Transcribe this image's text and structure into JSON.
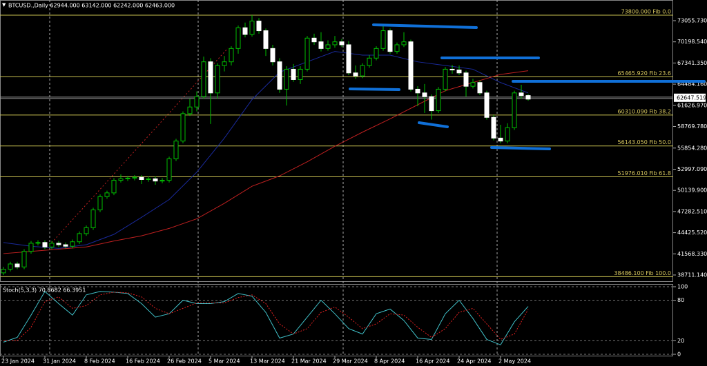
{
  "chart_data": [
    {
      "type": "candlestick",
      "title": "BTCUSD.,Daily  62944.000 63142.000 62242.000 62463.000",
      "categories": [
        "23 Jan 2024",
        null,
        null,
        null,
        null,
        null,
        "31 Jan 2024",
        null,
        null,
        null,
        null,
        null,
        "8 Feb 2024",
        null,
        null,
        null,
        null,
        null,
        "16 Feb 2024",
        null,
        null,
        null,
        null,
        null,
        "26 Feb 2024",
        null,
        null,
        null,
        null,
        null,
        "5 Mar 2024",
        null,
        null,
        null,
        null,
        null,
        "13 Mar 2024",
        null,
        null,
        null,
        null,
        null,
        "21 Mar 2024",
        null,
        null,
        null,
        null,
        null,
        "29 Mar 2024",
        null,
        null,
        null,
        null,
        null,
        "8 Apr 2024",
        null,
        null,
        null,
        null,
        null,
        "16 Apr 2024",
        null,
        null,
        null,
        null,
        null,
        "24 Apr 2024",
        null,
        null,
        null,
        null,
        null,
        "2 May 2024",
        null,
        null,
        null,
        null
      ],
      "candles": [
        [
          39000,
          39800,
          38700,
          39500
        ],
        [
          39500,
          40500,
          39200,
          40200
        ],
        [
          40200,
          40500,
          39500,
          39800
        ],
        [
          39800,
          42200,
          39500,
          41900
        ],
        [
          41900,
          43300,
          41600,
          43000
        ],
        [
          43000,
          43400,
          42700,
          43100
        ],
        [
          43100,
          43400,
          42200,
          42500
        ],
        [
          42500,
          43300,
          42200,
          43000
        ],
        [
          43000,
          43300,
          42500,
          42800
        ],
        [
          42800,
          43100,
          42300,
          42600
        ],
        [
          42600,
          43500,
          42300,
          43200
        ],
        [
          43200,
          44600,
          42900,
          44300
        ],
        [
          44300,
          45400,
          44000,
          45100
        ],
        [
          45100,
          47800,
          44800,
          47500
        ],
        [
          47500,
          49600,
          47200,
          49300
        ],
        [
          49300,
          50100,
          49000,
          49800
        ],
        [
          49800,
          51800,
          49500,
          51500
        ],
        [
          51500,
          52300,
          51200,
          51700
        ],
        [
          51700,
          52100,
          51400,
          51800
        ],
        [
          51800,
          52200,
          51500,
          51900
        ],
        [
          51900,
          52200,
          51000,
          51600
        ],
        [
          51600,
          52000,
          51300,
          51700
        ],
        [
          51700,
          52000,
          50900,
          51400
        ],
        [
          51400,
          51800,
          51100,
          51500
        ],
        [
          51500,
          54700,
          51200,
          54400
        ],
        [
          54400,
          57100,
          54100,
          56800
        ],
        [
          56800,
          60800,
          56500,
          60500
        ],
        [
          60500,
          62500,
          60200,
          61400
        ],
        [
          61400,
          63500,
          60800,
          62800
        ],
        [
          62800,
          68200,
          62500,
          67500
        ],
        [
          67500,
          68000,
          59100,
          63300
        ],
        [
          63300,
          67300,
          62500,
          67000
        ],
        [
          67000,
          68300,
          66200,
          67500
        ],
        [
          67500,
          69600,
          67000,
          69300
        ],
        [
          69300,
          72400,
          68600,
          72100
        ],
        [
          72100,
          72800,
          70800,
          71200
        ],
        [
          71200,
          73800,
          70900,
          73000
        ],
        [
          73000,
          73400,
          71300,
          71700
        ],
        [
          71700,
          72000,
          68300,
          69300
        ],
        [
          69300,
          69800,
          67000,
          67500
        ],
        [
          67500,
          68000,
          63300,
          63800
        ],
        [
          63800,
          66900,
          61600,
          66500
        ],
        [
          66500,
          67200,
          64800,
          65100
        ],
        [
          65100,
          66900,
          64500,
          66500
        ],
        [
          66500,
          71000,
          66200,
          70700
        ],
        [
          70700,
          71300,
          69800,
          70200
        ],
        [
          70200,
          71500,
          68900,
          69300
        ],
        [
          69300,
          70400,
          69000,
          69800
        ],
        [
          69800,
          71000,
          69400,
          70200
        ],
        [
          70200,
          70600,
          69500,
          69800
        ],
        [
          69800,
          70300,
          65700,
          66000
        ],
        [
          66000,
          67000,
          65200,
          65600
        ],
        [
          65600,
          67300,
          65300,
          67000
        ],
        [
          67000,
          68400,
          66700,
          68000
        ],
        [
          68000,
          69600,
          67700,
          69300
        ],
        [
          69300,
          72500,
          69000,
          71700
        ],
        [
          71700,
          72000,
          68600,
          68900
        ],
        [
          68900,
          70100,
          68600,
          69800
        ],
        [
          69800,
          71500,
          69500,
          70200
        ],
        [
          70200,
          70500,
          63500,
          63800
        ],
        [
          63800,
          64200,
          61500,
          63300
        ],
        [
          63300,
          64500,
          60600,
          62800
        ],
        [
          62800,
          63100,
          59700,
          60900
        ],
        [
          60900,
          64100,
          60600,
          63800
        ],
        [
          63800,
          66800,
          63500,
          66500
        ],
        [
          66500,
          67100,
          65900,
          66400
        ],
        [
          66400,
          67000,
          65700,
          66000
        ],
        [
          66000,
          66300,
          62800,
          64200
        ],
        [
          64200,
          65200,
          63900,
          64700
        ],
        [
          64700,
          65000,
          63000,
          63300
        ],
        [
          63300,
          63600,
          59700,
          60000
        ],
        [
          60000,
          60300,
          56900,
          57200
        ],
        [
          57200,
          59000,
          56500,
          56800
        ],
        [
          56800,
          59200,
          56500,
          58600
        ],
        [
          58600,
          63600,
          58300,
          63300
        ],
        [
          63300,
          64400,
          62500,
          62944
        ],
        [
          62944,
          63142,
          62242,
          62463
        ]
      ],
      "up_color": "#00c000",
      "down_color": "#ffffff",
      "lines": [
        {
          "color": "#1a2a9c",
          "x": [
            0,
            4,
            8,
            12,
            16,
            20,
            24,
            28,
            32,
            36,
            40,
            44,
            48,
            52,
            56,
            60,
            64,
            68,
            72,
            76
          ],
          "values": [
            43100,
            42600,
            42300,
            42800,
            44200,
            46500,
            48900,
            52600,
            57200,
            62400,
            66100,
            67500,
            68900,
            68400,
            68400,
            67500,
            67000,
            66500,
            64700,
            63300
          ]
        },
        {
          "color": "#c02020",
          "x": [
            0,
            4,
            8,
            12,
            16,
            20,
            24,
            28,
            32,
            36,
            40,
            44,
            48,
            52,
            56,
            60,
            64,
            68,
            72,
            76
          ],
          "values": [
            41600,
            41900,
            42200,
            42500,
            43300,
            44000,
            45000,
            46300,
            48400,
            50700,
            52100,
            54000,
            56100,
            58000,
            59800,
            61700,
            63600,
            64700,
            65800,
            66300
          ]
        }
      ],
      "ylim": [
        37871,
        75848
      ],
      "yticks": [
        {
          "value": 73055.73,
          "label": "73055.730"
        },
        {
          "value": 70198.54,
          "label": "70198.540"
        },
        {
          "value": 67341.35,
          "label": "67341.350"
        },
        {
          "value": 64484.16,
          "label": "64484.160"
        },
        {
          "value": 61626.97,
          "label": "61626.970"
        },
        {
          "value": 58769.78,
          "label": "58769.780"
        },
        {
          "value": 55854.28,
          "label": "55854.280"
        },
        {
          "value": 52997.09,
          "label": "52997.090"
        },
        {
          "value": 50139.9,
          "label": "50139.900"
        },
        {
          "value": 47282.51,
          "label": "47282.510"
        },
        {
          "value": 44425.52,
          "label": "44425.520"
        },
        {
          "value": 41568.33,
          "label": "41568.330"
        },
        {
          "value": 38711.14,
          "label": "38711.140"
        }
      ],
      "fib_levels": [
        {
          "value": 73800,
          "label": "73800.000 Fib 0.0"
        },
        {
          "value": 65465.92,
          "label": "65465.920 Fib 23.6"
        },
        {
          "value": 60310.09,
          "label": "60310.090 Fib 38.2"
        },
        {
          "value": 56143.05,
          "label": "56143.050 Fib 50.0"
        },
        {
          "value": 51976.01,
          "label": "51976.010 Fib 61.8"
        },
        {
          "value": 38486.1,
          "label": "38486.100 Fib 100.0"
        }
      ],
      "current_price": 62647.519
    },
    {
      "type": "line",
      "title": "Stoch(5,3,3) 70.8682 66.3951",
      "ylim": [
        0,
        100
      ],
      "yticks": [
        0,
        20,
        80,
        100
      ],
      "series": [
        {
          "color": "#40c0c8",
          "x": [
            0,
            2,
            4,
            6,
            8,
            10,
            12,
            14,
            16,
            18,
            20,
            22,
            24,
            26,
            28,
            30,
            32,
            34,
            36,
            38,
            40,
            42,
            44,
            46,
            48,
            50,
            52,
            54,
            56,
            58,
            60,
            62,
            64,
            66,
            68,
            70,
            72,
            74,
            76
          ],
          "values": [
            18,
            25,
            58,
            93,
            75,
            58,
            88,
            93,
            92,
            90,
            75,
            55,
            60,
            80,
            75,
            75,
            78,
            90,
            86,
            62,
            24,
            30,
            55,
            80,
            60,
            38,
            30,
            60,
            67,
            50,
            24,
            22,
            60,
            80,
            53,
            22,
            14,
            48,
            70.8682
          ]
        },
        {
          "color": "#e02020",
          "dash": true,
          "x": [
            0,
            2,
            4,
            6,
            8,
            10,
            12,
            14,
            16,
            18,
            20,
            22,
            24,
            26,
            28,
            30,
            32,
            34,
            36,
            38,
            40,
            42,
            44,
            46,
            48,
            50,
            52,
            54,
            56,
            58,
            60,
            62,
            64,
            66,
            68,
            70,
            72,
            74,
            76
          ],
          "values": [
            20,
            20,
            40,
            78,
            85,
            68,
            72,
            88,
            92,
            91,
            85,
            68,
            60,
            68,
            76,
            76,
            76,
            84,
            88,
            75,
            45,
            30,
            38,
            62,
            70,
            55,
            38,
            45,
            60,
            58,
            40,
            25,
            38,
            62,
            68,
            45,
            22,
            30,
            66.3951
          ]
        }
      ]
    }
  ]
}
